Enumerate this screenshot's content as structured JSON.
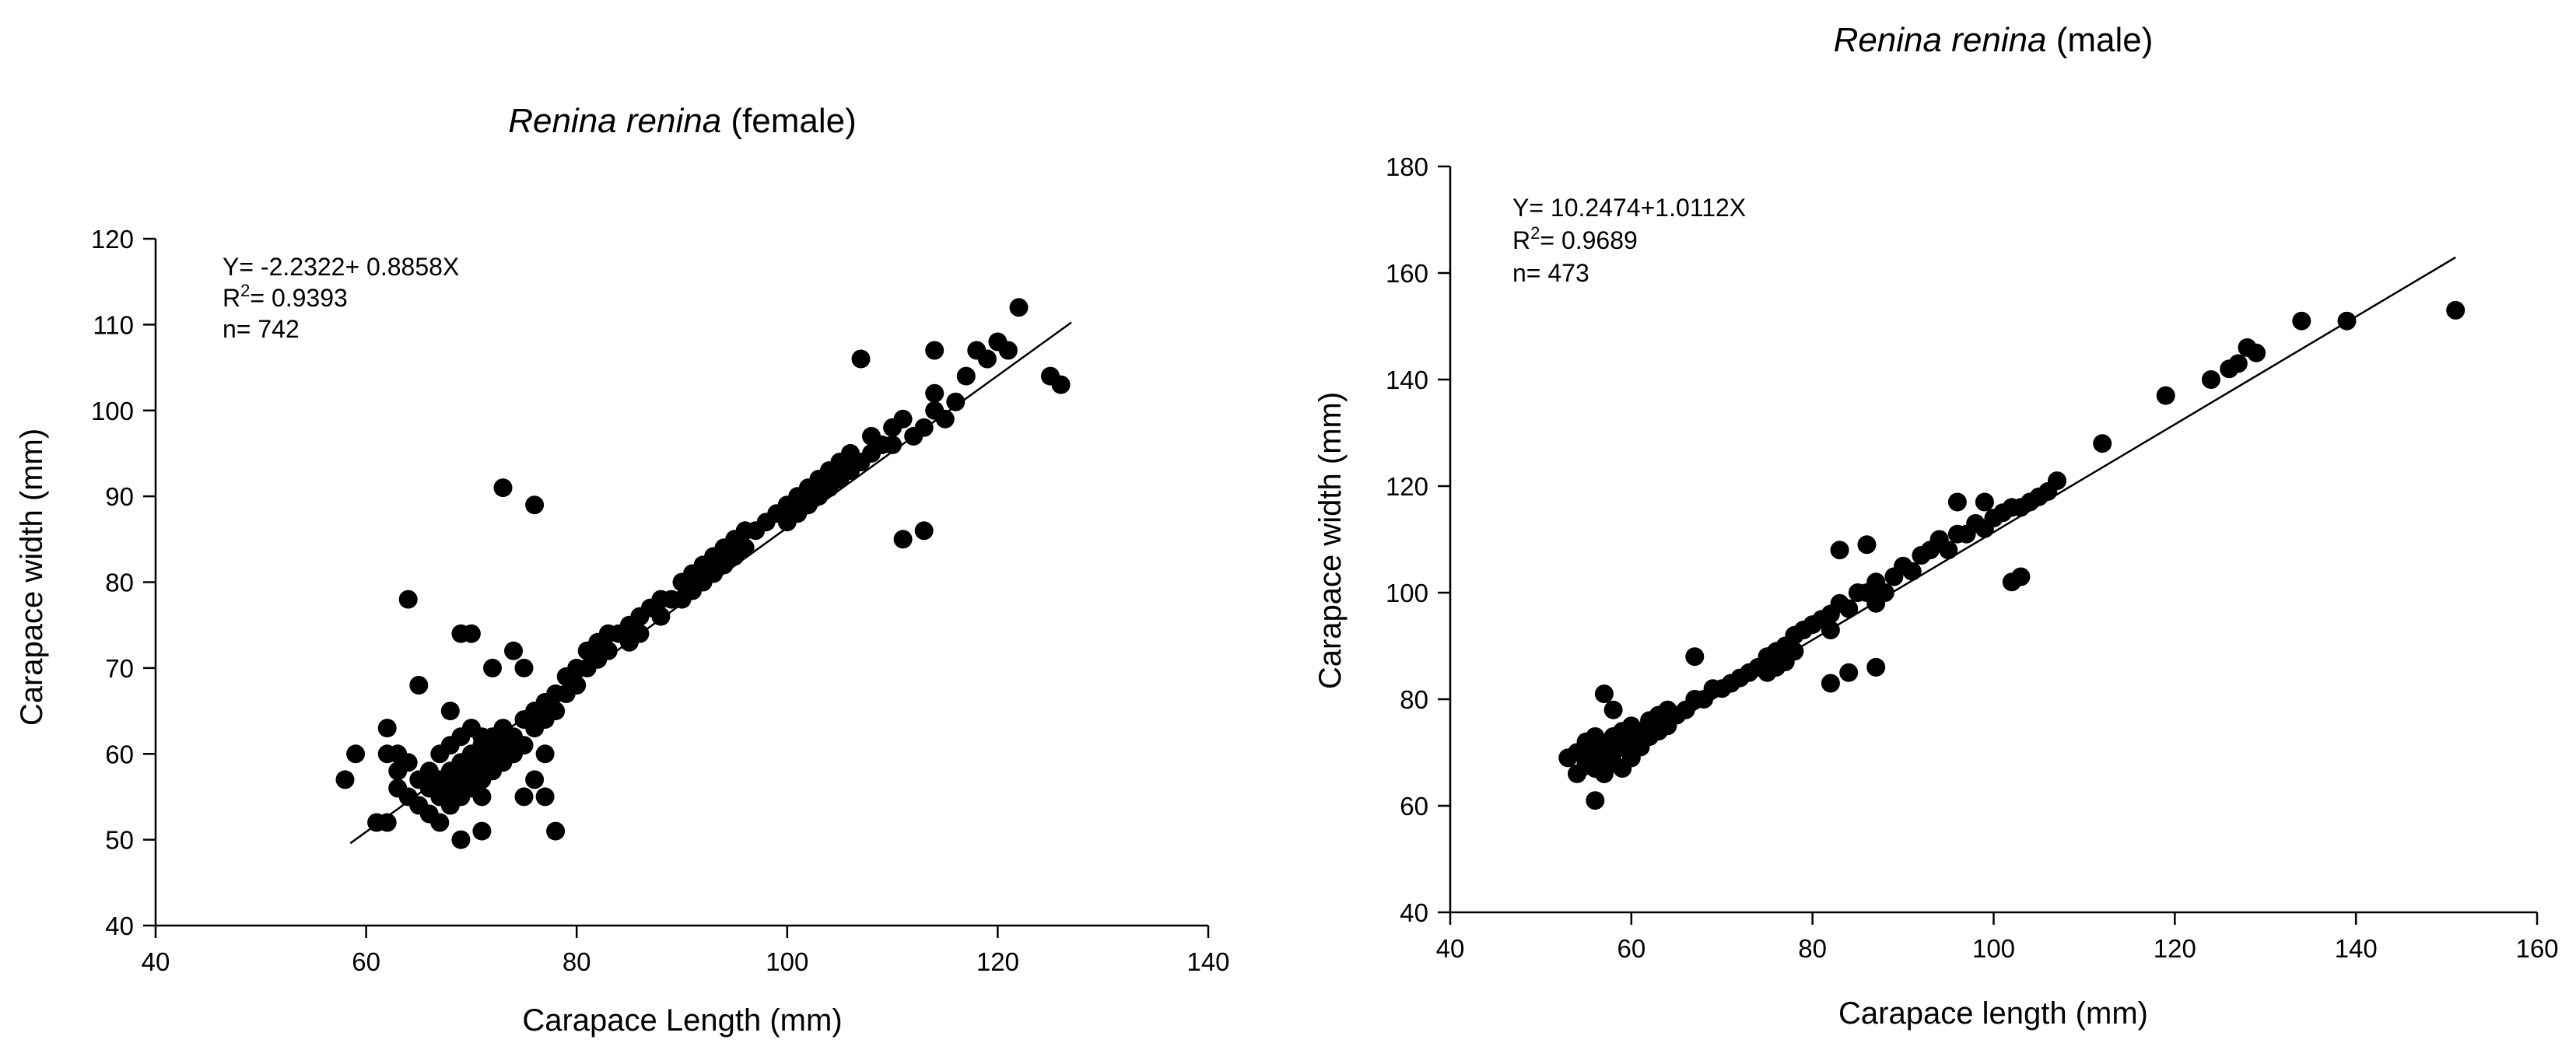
{
  "chart_data": [
    {
      "type": "scatter",
      "title": "Renina renina (female)",
      "title_italic": "Renina renina",
      "title_plain": " (female)",
      "xlabel": "Carapace Length (mm)",
      "ylabel": "Carapace width (mm)",
      "xlim": [
        40,
        140
      ],
      "ylim": [
        40,
        120
      ],
      "xticks": [
        40,
        60,
        80,
        100,
        120,
        140
      ],
      "yticks": [
        40,
        50,
        60,
        70,
        80,
        90,
        100,
        110,
        120
      ],
      "annotations": {
        "equation": "Y= -2.2322+ 0.8858X",
        "r2_prefix": "R",
        "r2_sup": "2",
        "r2_value": "= 0.9393",
        "n": "n= 742"
      },
      "regression": {
        "intercept": -2.2322,
        "slope": 0.8858,
        "x_range": [
          58.5,
          127
        ]
      },
      "series": [
        {
          "name": "female",
          "x": [
            58,
            59,
            61,
            62,
            62,
            63,
            63,
            64,
            64,
            65,
            65,
            66,
            66,
            66,
            67,
            67,
            67,
            68,
            68,
            68,
            68,
            69,
            69,
            69,
            69,
            70,
            70,
            70,
            70,
            71,
            71,
            71,
            71,
            72,
            72,
            72,
            73,
            73,
            73,
            74,
            74,
            75,
            75,
            76,
            76,
            77,
            77,
            78,
            78,
            79,
            79,
            80,
            80,
            81,
            81,
            82,
            82,
            83,
            83,
            84,
            85,
            85,
            86,
            86,
            87,
            88,
            88,
            89,
            90,
            90,
            91,
            91,
            92,
            92,
            93,
            93,
            94,
            94,
            95,
            95,
            96,
            96,
            97,
            98,
            99,
            100,
            100,
            101,
            101,
            102,
            102,
            103,
            103,
            104,
            104,
            105,
            105,
            106,
            106,
            107,
            108,
            108,
            109,
            110,
            110,
            111,
            112,
            113,
            114,
            114,
            115,
            116,
            117,
            118,
            119,
            120,
            121,
            122,
            125,
            126,
            64,
            65,
            68,
            69,
            70,
            71,
            72,
            73,
            74,
            75,
            76,
            77,
            78,
            107,
            111,
            113,
            114,
            73,
            76,
            63,
            71,
            62,
            69,
            67,
            75,
            77
          ],
          "y": [
            57,
            60,
            52,
            60,
            63,
            56,
            58,
            59,
            55,
            57,
            54,
            56,
            58,
            53,
            57,
            60,
            55,
            58,
            61,
            56,
            54,
            59,
            57,
            62,
            55,
            60,
            58,
            56,
            63,
            59,
            57,
            61,
            55,
            60,
            58,
            62,
            61,
            59,
            63,
            62,
            60,
            64,
            61,
            65,
            63,
            66,
            64,
            67,
            65,
            69,
            67,
            70,
            68,
            72,
            70,
            73,
            71,
            74,
            72,
            74,
            75,
            73,
            76,
            74,
            77,
            78,
            76,
            78,
            80,
            78,
            81,
            79,
            82,
            80,
            83,
            81,
            84,
            82,
            85,
            83,
            86,
            84,
            86,
            87,
            88,
            89,
            87,
            90,
            88,
            91,
            89,
            92,
            90,
            93,
            91,
            94,
            92,
            95,
            93,
            94,
            95,
            97,
            96,
            98,
            96,
            99,
            97,
            98,
            100,
            102,
            99,
            101,
            104,
            107,
            106,
            108,
            107,
            112,
            104,
            103,
            78,
            68,
            65,
            74,
            74,
            62,
            70,
            60,
            72,
            70,
            57,
            60,
            51,
            106,
            85,
            86,
            107,
            91,
            89,
            60,
            51,
            52,
            50,
            52,
            55,
            55
          ]
        }
      ]
    },
    {
      "type": "scatter",
      "title": "Renina renina (male)",
      "title_italic": "Renina renina",
      "title_plain": " (male)",
      "xlabel": "Carapace length (mm)",
      "ylabel": "Carapace width (mm)",
      "xlim": [
        40,
        160
      ],
      "ylim": [
        40,
        180
      ],
      "xticks": [
        40,
        60,
        80,
        100,
        120,
        140,
        160
      ],
      "yticks": [
        40,
        60,
        80,
        100,
        120,
        140,
        160,
        180
      ],
      "annotations": {
        "equation": "Y= 10.2474+1.0112X",
        "r2_prefix": "R",
        "r2_sup": "2",
        "r2_value": "= 0.9689",
        "n": "n= 473"
      },
      "regression": {
        "intercept": 10.2474,
        "slope": 1.0112,
        "x_range": [
          54,
          151
        ]
      },
      "series": [
        {
          "name": "male",
          "x": [
            53,
            54,
            54,
            55,
            55,
            56,
            56,
            56,
            57,
            57,
            57,
            58,
            58,
            58,
            59,
            59,
            59,
            60,
            60,
            60,
            61,
            61,
            62,
            62,
            63,
            63,
            64,
            64,
            65,
            66,
            67,
            68,
            69,
            70,
            71,
            72,
            73,
            74,
            75,
            75,
            76,
            76,
            77,
            77,
            78,
            78,
            79,
            80,
            81,
            82,
            82,
            83,
            84,
            85,
            86,
            87,
            88,
            89,
            90,
            91,
            92,
            93,
            94,
            95,
            96,
            97,
            98,
            99,
            100,
            101,
            102,
            103,
            104,
            105,
            106,
            107,
            112,
            119,
            124,
            126,
            127,
            128,
            129,
            134,
            139,
            151,
            57,
            58,
            67,
            83,
            86,
            87,
            96,
            99,
            102,
            103,
            87,
            84,
            82,
            56
          ],
          "y": [
            69,
            66,
            70,
            68,
            72,
            67,
            70,
            73,
            69,
            71,
            66,
            70,
            73,
            68,
            71,
            74,
            67,
            72,
            69,
            75,
            71,
            74,
            73,
            76,
            74,
            77,
            75,
            78,
            77,
            78,
            80,
            80,
            82,
            82,
            83,
            84,
            85,
            86,
            88,
            85,
            89,
            86,
            90,
            87,
            92,
            89,
            93,
            94,
            95,
            96,
            93,
            98,
            97,
            100,
            100,
            102,
            100,
            103,
            105,
            104,
            107,
            108,
            110,
            108,
            111,
            111,
            113,
            112,
            114,
            115,
            116,
            116,
            117,
            118,
            119,
            121,
            128,
            137,
            140,
            142,
            143,
            146,
            145,
            151,
            151,
            153,
            81,
            78,
            88,
            108,
            109,
            86,
            117,
            117,
            102,
            103,
            98,
            85,
            83,
            61
          ]
        }
      ]
    }
  ]
}
